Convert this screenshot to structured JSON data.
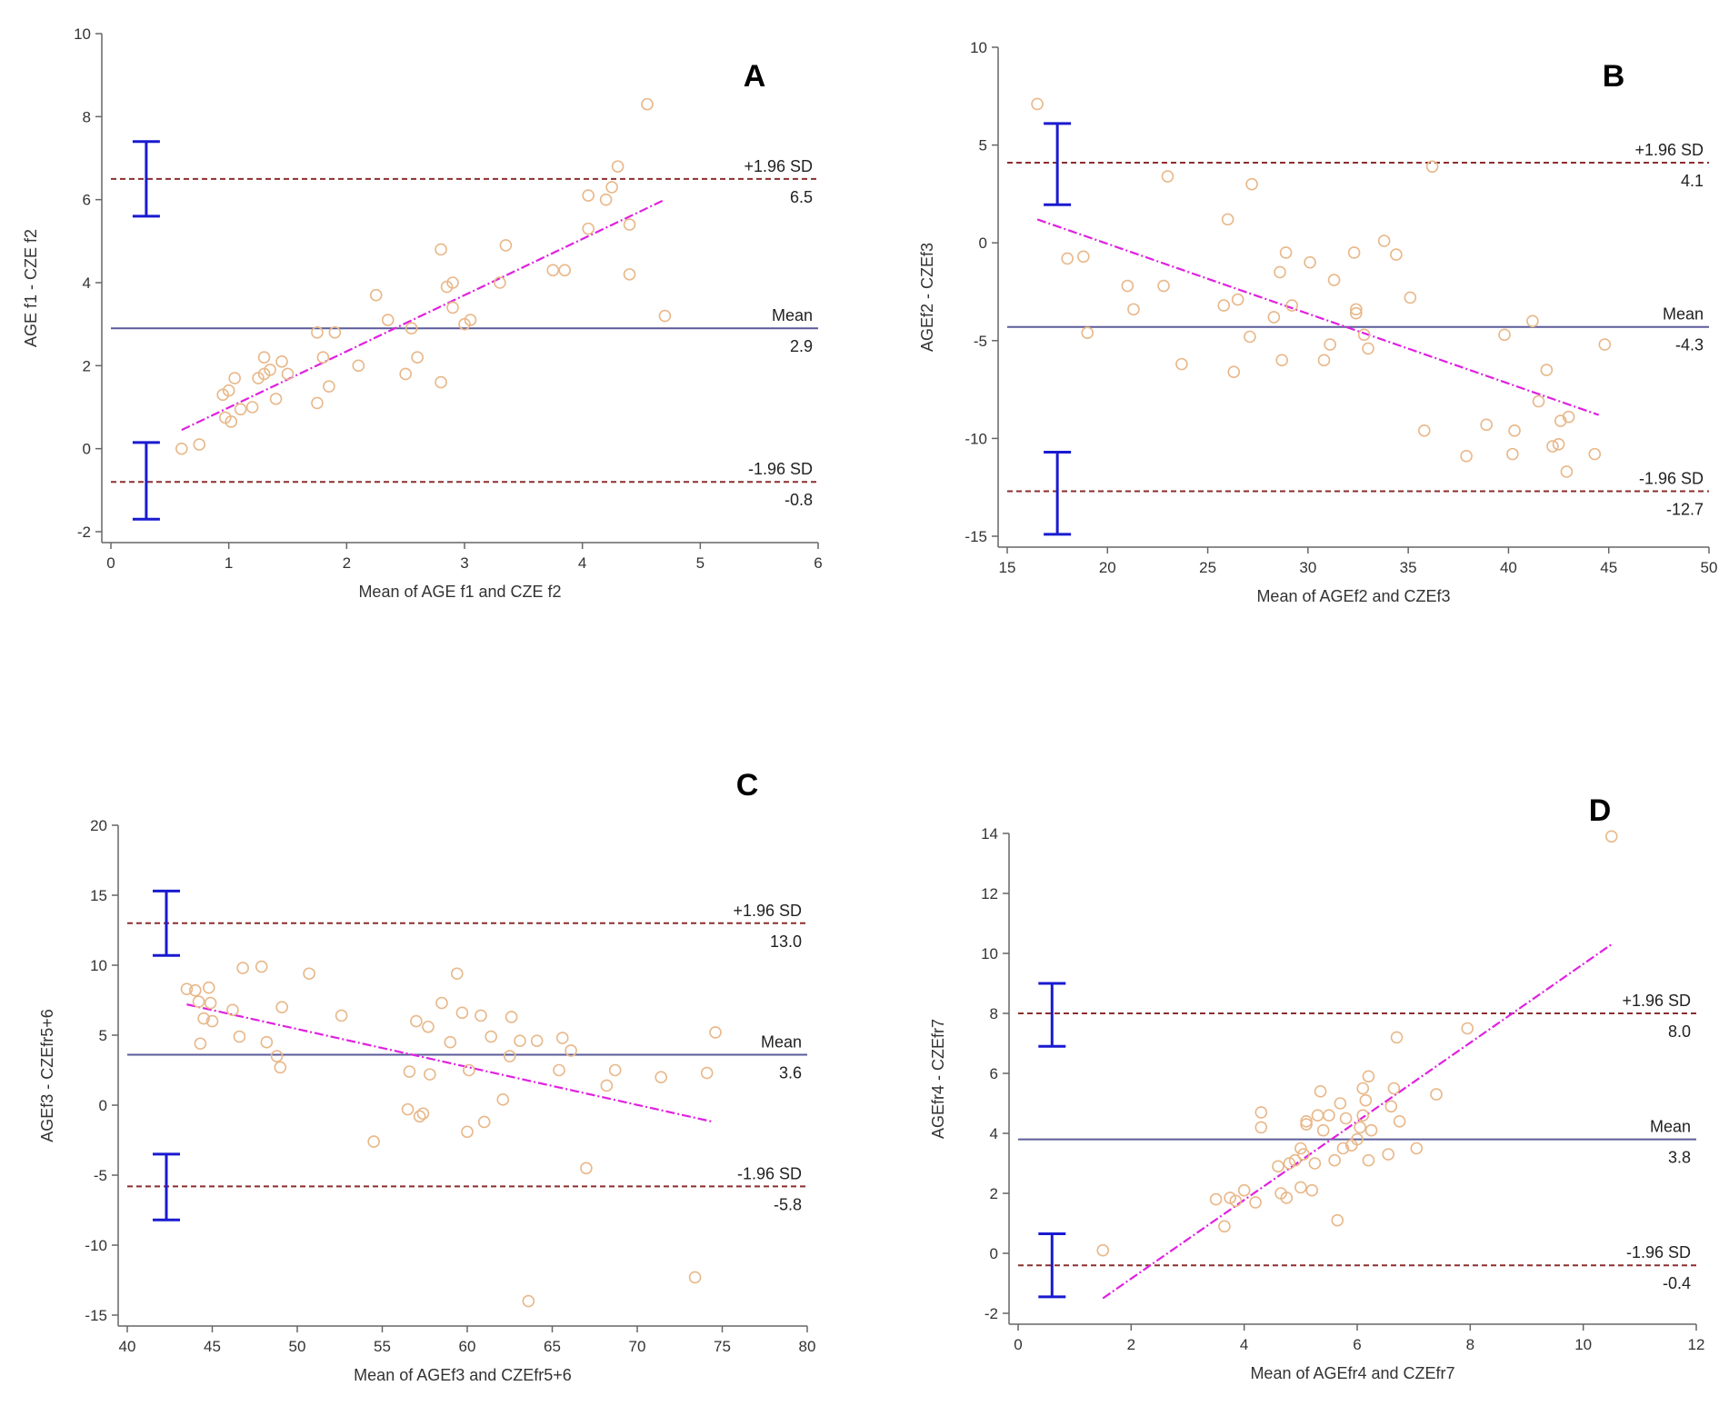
{
  "colors": {
    "points": "#e8b88a",
    "mean_line": "#5b5b9a",
    "sd_lines": "#8b2e2e",
    "regression": "#e020e0",
    "ci_bars": "#1a1ad0",
    "axis": "#666666"
  },
  "chart_data": [
    {
      "type": "scatter",
      "panel": "A",
      "xlabel": "Mean of AGE f1 and CZE f2",
      "ylabel": "AGE f1 - CZE f2",
      "xlim": [
        0,
        6
      ],
      "ylim": [
        -2,
        10
      ],
      "xticks": [
        "0",
        "1",
        "2",
        "3",
        "4",
        "5",
        "6"
      ],
      "yticks": [
        "-2",
        "0",
        "2",
        "4",
        "6",
        "8",
        "10"
      ],
      "mean": {
        "label": "Mean",
        "value": 2.9,
        "value_text": "2.9"
      },
      "upper_loa": {
        "label": "+1.96 SD",
        "value": 6.5,
        "value_text": "6.5"
      },
      "lower_loa": {
        "label": "-1.96 SD",
        "value": -0.8,
        "value_text": "-0.8"
      },
      "ci_upper": {
        "x": 0.3,
        "low": 5.6,
        "high": 7.4
      },
      "ci_lower": {
        "x": 0.3,
        "low": -1.7,
        "high": 0.15
      },
      "regression": {
        "x1": 0.6,
        "y1": 0.45,
        "x2": 4.7,
        "y2": 6.0
      },
      "points": [
        [
          0.6,
          0.0
        ],
        [
          0.75,
          0.1
        ],
        [
          0.95,
          1.3
        ],
        [
          1.0,
          1.4
        ],
        [
          0.97,
          0.75
        ],
        [
          1.02,
          0.65
        ],
        [
          1.05,
          1.7
        ],
        [
          1.1,
          0.95
        ],
        [
          1.2,
          1.0
        ],
        [
          1.25,
          1.7
        ],
        [
          1.3,
          1.8
        ],
        [
          1.3,
          2.2
        ],
        [
          1.35,
          1.9
        ],
        [
          1.4,
          1.2
        ],
        [
          1.45,
          2.1
        ],
        [
          1.5,
          1.8
        ],
        [
          1.75,
          2.8
        ],
        [
          1.75,
          1.1
        ],
        [
          1.8,
          2.2
        ],
        [
          1.85,
          1.5
        ],
        [
          1.9,
          2.8
        ],
        [
          2.1,
          2.0
        ],
        [
          2.25,
          3.7
        ],
        [
          2.35,
          3.1
        ],
        [
          2.5,
          1.8
        ],
        [
          2.55,
          2.9
        ],
        [
          2.6,
          2.2
        ],
        [
          2.8,
          4.8
        ],
        [
          2.8,
          1.6
        ],
        [
          2.85,
          3.9
        ],
        [
          2.9,
          4.0
        ],
        [
          2.9,
          3.4
        ],
        [
          3.0,
          3.0
        ],
        [
          3.05,
          3.1
        ],
        [
          3.3,
          4.0
        ],
        [
          3.35,
          4.9
        ],
        [
          3.75,
          4.3
        ],
        [
          3.85,
          4.3
        ],
        [
          4.05,
          6.1
        ],
        [
          4.05,
          5.3
        ],
        [
          4.2,
          6.0
        ],
        [
          4.25,
          6.3
        ],
        [
          4.3,
          6.8
        ],
        [
          4.4,
          5.4
        ],
        [
          4.4,
          4.2
        ],
        [
          4.55,
          8.3
        ],
        [
          4.7,
          3.2
        ]
      ]
    },
    {
      "type": "scatter",
      "panel": "B",
      "xlabel": "Mean of AGEf2 and CZEf3",
      "ylabel": "AGEf2 - CZEf3",
      "xlim": [
        15,
        50
      ],
      "ylim": [
        -15,
        10
      ],
      "xticks": [
        "15",
        "20",
        "25",
        "30",
        "35",
        "40",
        "45",
        "50"
      ],
      "yticks": [
        "-15",
        "-10",
        "-5",
        "0",
        "5",
        "10"
      ],
      "mean": {
        "label": "Mean",
        "value": -4.3,
        "value_text": "-4.3"
      },
      "upper_loa": {
        "label": "+1.96 SD",
        "value": 4.1,
        "value_text": "4.1"
      },
      "lower_loa": {
        "label": "-1.96 SD",
        "value": -12.7,
        "value_text": "-12.7"
      },
      "ci_upper": {
        "x": 17.5,
        "low": 1.95,
        "high": 6.1
      },
      "ci_lower": {
        "x": 17.5,
        "low": -14.9,
        "high": -10.7
      },
      "regression": {
        "x1": 16.5,
        "y1": 1.2,
        "x2": 44.5,
        "y2": -8.8
      },
      "points": [
        [
          16.5,
          7.1
        ],
        [
          18.0,
          -0.8
        ],
        [
          18.8,
          -0.7
        ],
        [
          19.0,
          -4.6
        ],
        [
          21.0,
          -2.2
        ],
        [
          21.3,
          -3.4
        ],
        [
          22.8,
          -2.2
        ],
        [
          23.0,
          3.4
        ],
        [
          23.7,
          -6.2
        ],
        [
          25.8,
          -3.2
        ],
        [
          26.0,
          1.2
        ],
        [
          26.3,
          -6.6
        ],
        [
          26.5,
          -2.9
        ],
        [
          27.1,
          -4.8
        ],
        [
          27.2,
          3.0
        ],
        [
          28.3,
          -3.8
        ],
        [
          28.6,
          -1.5
        ],
        [
          28.7,
          -6.0
        ],
        [
          28.9,
          -0.5
        ],
        [
          29.2,
          -3.2
        ],
        [
          30.1,
          -1.0
        ],
        [
          30.8,
          -6.0
        ],
        [
          31.1,
          -5.2
        ],
        [
          31.3,
          -1.9
        ],
        [
          32.3,
          -0.5
        ],
        [
          32.4,
          -3.4
        ],
        [
          32.4,
          -3.6
        ],
        [
          32.8,
          -4.7
        ],
        [
          33.0,
          -5.4
        ],
        [
          33.8,
          0.1
        ],
        [
          34.4,
          -0.6
        ],
        [
          35.1,
          -2.8
        ],
        [
          35.8,
          -9.6
        ],
        [
          36.2,
          3.9
        ],
        [
          37.9,
          -10.9
        ],
        [
          38.9,
          -9.3
        ],
        [
          39.8,
          -4.7
        ],
        [
          40.2,
          -10.8
        ],
        [
          40.3,
          -9.6
        ],
        [
          41.2,
          -4.0
        ],
        [
          41.5,
          -8.1
        ],
        [
          41.9,
          -6.5
        ],
        [
          42.2,
          -10.4
        ],
        [
          42.5,
          -10.3
        ],
        [
          42.6,
          -9.1
        ],
        [
          42.9,
          -11.7
        ],
        [
          43.0,
          -8.9
        ],
        [
          44.3,
          -10.8
        ],
        [
          44.8,
          -5.2
        ]
      ]
    },
    {
      "type": "scatter",
      "panel": "C",
      "xlabel": "Mean of AGEf3 and CZEfr5+6",
      "ylabel": "AGEf3 - CZEfr5+6",
      "xlim": [
        40,
        80
      ],
      "ylim": [
        -15,
        20
      ],
      "xticks": [
        "40",
        "45",
        "50",
        "55",
        "60",
        "65",
        "70",
        "75",
        "80"
      ],
      "yticks": [
        "-15",
        "-10",
        "-5",
        "0",
        "5",
        "10",
        "15",
        "20"
      ],
      "mean": {
        "label": "Mean",
        "value": 3.6,
        "value_text": "3.6"
      },
      "upper_loa": {
        "label": "+1.96 SD",
        "value": 13.0,
        "value_text": "13.0"
      },
      "lower_loa": {
        "label": "-1.96 SD",
        "value": -5.8,
        "value_text": "-5.8"
      },
      "ci_upper": {
        "x": 42.3,
        "low": 10.7,
        "high": 15.3
      },
      "ci_lower": {
        "x": 42.3,
        "low": -8.2,
        "high": -3.5
      },
      "regression": {
        "x1": 43.5,
        "y1": 7.2,
        "x2": 74.5,
        "y2": -1.2
      },
      "points": [
        [
          43.5,
          8.3
        ],
        [
          44.0,
          8.2
        ],
        [
          44.2,
          7.4
        ],
        [
          44.3,
          4.4
        ],
        [
          44.5,
          6.2
        ],
        [
          44.8,
          8.4
        ],
        [
          44.9,
          7.3
        ],
        [
          45.0,
          6.0
        ],
        [
          46.2,
          6.8
        ],
        [
          46.6,
          4.9
        ],
        [
          46.8,
          9.8
        ],
        [
          47.9,
          9.9
        ],
        [
          48.2,
          4.5
        ],
        [
          48.8,
          3.5
        ],
        [
          49.0,
          2.7
        ],
        [
          49.1,
          7.0
        ],
        [
          50.7,
          9.4
        ],
        [
          52.6,
          6.4
        ],
        [
          54.5,
          -2.6
        ],
        [
          56.5,
          -0.3
        ],
        [
          56.6,
          2.4
        ],
        [
          57.0,
          6.0
        ],
        [
          57.2,
          -0.8
        ],
        [
          57.4,
          -0.6
        ],
        [
          57.7,
          5.6
        ],
        [
          57.8,
          2.2
        ],
        [
          58.5,
          7.3
        ],
        [
          59.0,
          4.5
        ],
        [
          59.4,
          9.4
        ],
        [
          59.7,
          6.6
        ],
        [
          60.0,
          -1.9
        ],
        [
          60.1,
          2.5
        ],
        [
          60.8,
          6.4
        ],
        [
          61.0,
          -1.2
        ],
        [
          61.4,
          4.9
        ],
        [
          62.1,
          0.4
        ],
        [
          62.5,
          3.5
        ],
        [
          62.6,
          6.3
        ],
        [
          63.1,
          4.6
        ],
        [
          63.6,
          -14.0
        ],
        [
          64.1,
          4.6
        ],
        [
          65.4,
          2.5
        ],
        [
          65.6,
          4.8
        ],
        [
          66.1,
          3.9
        ],
        [
          67.0,
          -4.5
        ],
        [
          68.2,
          1.4
        ],
        [
          68.7,
          2.5
        ],
        [
          71.4,
          2.0
        ],
        [
          73.4,
          -12.3
        ],
        [
          74.1,
          2.3
        ],
        [
          74.6,
          5.2
        ]
      ]
    },
    {
      "type": "scatter",
      "panel": "D",
      "xlabel": "Mean of AGEfr4 and CZEfr7",
      "ylabel": "AGEfr4 - CZEfr7",
      "xlim": [
        0,
        12
      ],
      "ylim": [
        -2,
        14
      ],
      "xticks": [
        "0",
        "2",
        "4",
        "6",
        "8",
        "10",
        "12"
      ],
      "yticks": [
        "-2",
        "0",
        "2",
        "4",
        "6",
        "8",
        "10",
        "12",
        "14"
      ],
      "mean": {
        "label": "Mean",
        "value": 3.8,
        "value_text": "3.8"
      },
      "upper_loa": {
        "label": "+1.96 SD",
        "value": 8.0,
        "value_text": "8.0"
      },
      "lower_loa": {
        "label": "-1.96 SD",
        "value": -0.4,
        "value_text": "-0.4"
      },
      "ci_upper": {
        "x": 0.6,
        "low": 6.9,
        "high": 9.0
      },
      "ci_lower": {
        "x": 0.6,
        "low": -1.45,
        "high": 0.65
      },
      "regression": {
        "x1": 1.5,
        "y1": -1.5,
        "x2": 10.5,
        "y2": 10.3
      },
      "points": [
        [
          1.5,
          0.1
        ],
        [
          3.5,
          1.8
        ],
        [
          3.65,
          0.9
        ],
        [
          3.75,
          1.85
        ],
        [
          3.85,
          1.75
        ],
        [
          4.0,
          2.1
        ],
        [
          4.2,
          1.7
        ],
        [
          4.3,
          4.2
        ],
        [
          4.3,
          4.7
        ],
        [
          4.6,
          2.9
        ],
        [
          4.65,
          2.0
        ],
        [
          4.75,
          1.85
        ],
        [
          4.8,
          3.0
        ],
        [
          4.9,
          3.1
        ],
        [
          5.0,
          2.2
        ],
        [
          5.0,
          3.5
        ],
        [
          5.05,
          3.3
        ],
        [
          5.1,
          4.4
        ],
        [
          5.1,
          4.3
        ],
        [
          5.2,
          2.1
        ],
        [
          5.25,
          3.0
        ],
        [
          5.3,
          4.6
        ],
        [
          5.35,
          5.4
        ],
        [
          5.4,
          4.1
        ],
        [
          5.5,
          4.6
        ],
        [
          5.6,
          3.1
        ],
        [
          5.65,
          1.1
        ],
        [
          5.7,
          5.0
        ],
        [
          5.75,
          3.5
        ],
        [
          5.8,
          4.5
        ],
        [
          5.9,
          3.6
        ],
        [
          6.0,
          3.8
        ],
        [
          6.05,
          4.2
        ],
        [
          6.1,
          4.6
        ],
        [
          6.1,
          5.5
        ],
        [
          6.15,
          5.1
        ],
        [
          6.2,
          5.9
        ],
        [
          6.2,
          3.1
        ],
        [
          6.25,
          4.1
        ],
        [
          6.55,
          3.3
        ],
        [
          6.6,
          4.9
        ],
        [
          6.65,
          5.5
        ],
        [
          6.7,
          7.2
        ],
        [
          6.75,
          4.4
        ],
        [
          7.05,
          3.5
        ],
        [
          7.4,
          5.3
        ],
        [
          7.95,
          7.5
        ],
        [
          10.5,
          13.9
        ]
      ]
    }
  ]
}
